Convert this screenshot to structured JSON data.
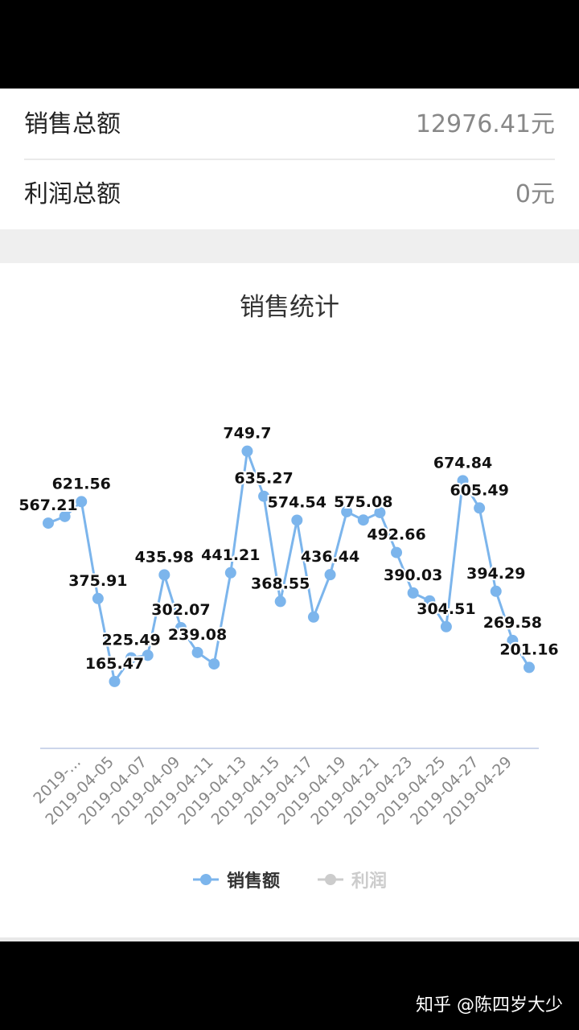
{
  "summary": {
    "rows": [
      {
        "label": "销售总额",
        "value": "12976.41元"
      },
      {
        "label": "利润总额",
        "value": "0元"
      }
    ]
  },
  "chart_data": {
    "type": "line",
    "title": "销售统计",
    "categories": [
      null,
      null,
      "2019-...",
      null,
      "2019-04-05",
      null,
      "2019-04-07",
      null,
      "2019-04-09",
      null,
      "2019-04-11",
      null,
      "2019-04-13",
      null,
      "2019-04-15",
      null,
      "2019-04-17",
      null,
      "2019-04-19",
      null,
      "2019-04-21",
      null,
      "2019-04-23",
      null,
      "2019-04-25",
      null,
      "2019-04-27",
      null,
      "2019-04-29",
      null
    ],
    "series": [
      {
        "name": "销售额",
        "color": "#7cb5ec",
        "values": [
          567.21,
          584,
          621.56,
          375.91,
          165.47,
          225.49,
          232,
          435.98,
          302.07,
          239.08,
          210,
          441.21,
          749.7,
          635.27,
          368.55,
          574.54,
          329,
          436.44,
          596,
          575.08,
          594,
          492.66,
          390.03,
          370,
          304.51,
          674.84,
          605.49,
          394.29,
          269.58,
          201.16
        ],
        "value_labels": [
          "567.21",
          null,
          "621.56",
          "375.91",
          "165.47",
          "225.49",
          null,
          "435.98",
          "302.07",
          "239.08",
          null,
          "441.21",
          "749.7",
          "635.27",
          "368.55",
          "574.54",
          null,
          "436.44",
          null,
          "575.08",
          null,
          "492.66",
          "390.03",
          null,
          "304.51",
          "674.84",
          "605.49",
          "394.29",
          "269.58",
          "201.16"
        ]
      },
      {
        "name": "利润",
        "color": "#cccccc",
        "hidden": true
      }
    ],
    "ylim": [
      0,
      800
    ],
    "legend": "bottom",
    "grid": false
  },
  "watermark": "知乎 @陈四岁大少"
}
